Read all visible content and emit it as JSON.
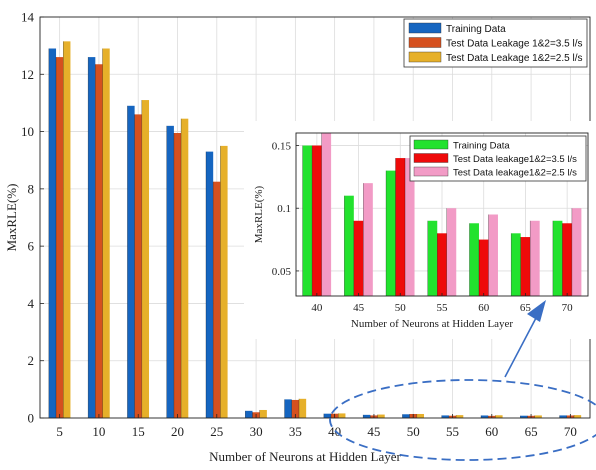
{
  "colors": {
    "training": "#1565c0",
    "leak35": "#d5501f",
    "leak25": "#e6b02a",
    "inset_training": "#22e22e",
    "inset_leak35": "#ee0a0a",
    "inset_leak25": "#f29bc6",
    "annotation": "#3a6ec4"
  },
  "main": {
    "ylabel": "MaxRLE(%)",
    "xlabel": "Number of Neurons at Hidden Layer",
    "legend": [
      "Training Data",
      "Test Data Leakage 1&2=3.5 l/s",
      "Test Data Leakage 1&2=2.5 l/s"
    ]
  },
  "inset": {
    "ylabel": "MaxRLE(%)",
    "xlabel": "Number of Neurons at Hidden Layer",
    "legend": [
      "Training Data",
      "Test Data leakage1&2=3.5 l/s",
      "Test Data leakage1&2=2.5 l/s"
    ]
  },
  "chart_data": [
    {
      "type": "bar",
      "ylabel": "MaxRLE(%)",
      "xlabel": "Number of Neurons at Hidden Layer",
      "categories": [
        "5",
        "10",
        "15",
        "20",
        "25",
        "30",
        "35",
        "40",
        "45",
        "50",
        "55",
        "60",
        "65",
        "70"
      ],
      "ylim": [
        0,
        14
      ],
      "yticks": [
        0,
        2,
        4,
        6,
        8,
        10,
        12,
        14
      ],
      "grid": true,
      "legend_position": "top-right",
      "series": [
        {
          "name": "Training Data",
          "values": [
            12.9,
            12.6,
            10.9,
            10.2,
            9.3,
            0.25,
            0.65,
            0.15,
            0.11,
            0.13,
            0.09,
            0.088,
            0.08,
            0.09
          ]
        },
        {
          "name": "Test Data Leakage 1&2=3.5 l/s",
          "values": [
            12.6,
            12.35,
            10.6,
            9.95,
            8.25,
            0.2,
            0.63,
            0.15,
            0.09,
            0.14,
            0.08,
            0.075,
            0.077,
            0.088
          ]
        },
        {
          "name": "Test Data Leakage 1&2=2.5 l/s",
          "values": [
            13.15,
            12.9,
            11.1,
            10.45,
            9.5,
            0.28,
            0.67,
            0.16,
            0.12,
            0.14,
            0.1,
            0.095,
            0.09,
            0.1
          ]
        }
      ]
    },
    {
      "type": "bar",
      "ylabel": "MaxRLE(%)",
      "xlabel": "Number of Neurons at Hidden Layer",
      "categories": [
        "40",
        "45",
        "50",
        "55",
        "60",
        "65",
        "70"
      ],
      "ylim": [
        0.03,
        0.16
      ],
      "yticks": [
        0.05,
        0.1,
        0.15
      ],
      "ytick_labels": [
        "0.05",
        "0.1",
        "0.15"
      ],
      "grid": true,
      "legend_position": "top-right",
      "series": [
        {
          "name": "Training Data",
          "values": [
            0.15,
            0.11,
            0.13,
            0.09,
            0.088,
            0.08,
            0.09
          ]
        },
        {
          "name": "Test Data leakage1&2=3.5 l/s",
          "values": [
            0.15,
            0.09,
            0.14,
            0.08,
            0.075,
            0.077,
            0.088
          ]
        },
        {
          "name": "Test Data leakage1&2=2.5 l/s",
          "values": [
            0.16,
            0.12,
            0.14,
            0.1,
            0.095,
            0.09,
            0.1
          ]
        }
      ]
    }
  ]
}
